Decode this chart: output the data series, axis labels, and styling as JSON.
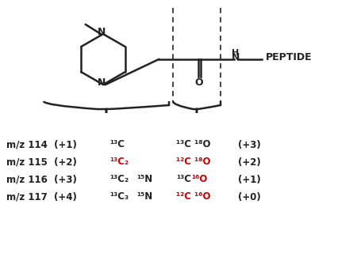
{
  "background_color": "#ffffff",
  "title": "",
  "fig_width": 4.5,
  "fig_height": 3.25,
  "dpi": 100,
  "rows": [
    {
      "mz": "m/z 114  (+1)",
      "reporter_black": "¹³C",
      "reporter_red": "",
      "extra_black": "",
      "middle_black": "¹³C ¹⁸O",
      "middle_red": "",
      "charge": "(+3)"
    },
    {
      "mz": "m/z 115  (+2)",
      "reporter_black": "",
      "reporter_red": "¹³C₂",
      "extra_black": "",
      "middle_black": "",
      "middle_red": "¹²C ¹⁸O",
      "charge": "(+2)"
    },
    {
      "mz": "m/z 116  (+3)",
      "reporter_black": "¹³C₂",
      "reporter_red": "",
      "extra_black": "¹⁵N",
      "middle_black": "¹³C",
      "middle_red": "¹⁶O",
      "charge": "(+1)"
    },
    {
      "mz": "m/z 117  (+4)",
      "reporter_black": "¹³C₃",
      "reporter_red": "",
      "extra_black": "¹⁵N",
      "middle_black": "",
      "middle_red": "¹²C ¹⁶O",
      "charge": "(+0)"
    }
  ]
}
